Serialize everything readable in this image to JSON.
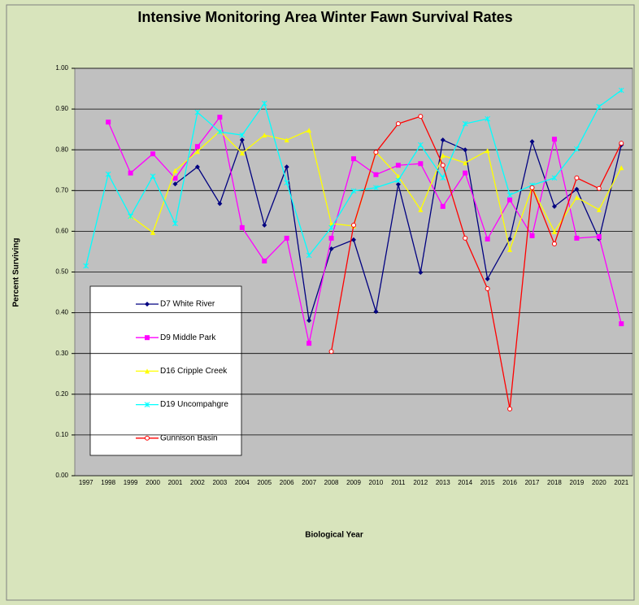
{
  "chart_data": {
    "type": "line",
    "title": "Intensive Monitoring Area Winter Fawn Survival Rates",
    "x_label": "Biological Year",
    "y_label": "Percent Surviving",
    "categories": [
      "1997",
      "1998",
      "1999",
      "2000",
      "2001",
      "2002",
      "2003",
      "2004",
      "2005",
      "2006",
      "2007",
      "2008",
      "2009",
      "2010",
      "2011",
      "2012",
      "2013",
      "2014",
      "2015",
      "2016",
      "2017",
      "2018",
      "2019",
      "2020",
      "2021"
    ],
    "ylim": [
      0,
      1
    ],
    "yticks": [
      {
        "value": 0,
        "label": "0.00"
      },
      {
        "value": 0.1,
        "label": "0.10"
      },
      {
        "value": 0.2,
        "label": "0.20"
      },
      {
        "value": 0.3,
        "label": "0.30"
      },
      {
        "value": 0.4,
        "label": "0.40"
      },
      {
        "value": 0.5,
        "label": "0.50"
      },
      {
        "value": 0.6,
        "label": "0.60"
      },
      {
        "value": 0.7,
        "label": "0.70"
      },
      {
        "value": 0.8,
        "label": "0.80"
      },
      {
        "value": 0.9,
        "label": "0.90"
      },
      {
        "value": 1,
        "label": "1.00"
      }
    ],
    "grid": true,
    "series": [
      {
        "name": "D7 White River",
        "color": "#000080",
        "marker": "diamond",
        "values": [
          null,
          null,
          null,
          null,
          0.716,
          0.758,
          0.668,
          0.824,
          0.615,
          0.758,
          0.381,
          0.557,
          0.579,
          0.403,
          0.715,
          0.499,
          0.824,
          0.8,
          0.483,
          0.581,
          0.82,
          0.661,
          0.703,
          0.581,
          0.812
        ]
      },
      {
        "name": "D9 Middle Park",
        "color": "#ff00ff",
        "marker": "square",
        "values": [
          null,
          0.868,
          0.743,
          0.79,
          0.73,
          0.808,
          0.88,
          0.609,
          0.527,
          0.583,
          0.325,
          0.583,
          0.778,
          0.739,
          0.762,
          0.766,
          0.661,
          0.743,
          0.581,
          0.677,
          0.589,
          0.826,
          0.583,
          0.587,
          0.373
        ]
      },
      {
        "name": "D16 Cripple Creek",
        "color": "#ffff00",
        "marker": "triangle",
        "values": [
          null,
          null,
          0.637,
          0.597,
          0.749,
          0.796,
          0.846,
          0.792,
          0.836,
          0.824,
          0.848,
          0.619,
          0.613,
          0.794,
          0.735,
          0.653,
          0.786,
          0.768,
          0.798,
          0.555,
          0.707,
          0.599,
          0.683,
          0.653,
          0.756
        ]
      },
      {
        "name": "D19 Uncompahgre",
        "color": "#00ffff",
        "marker": "star",
        "values": [
          0.515,
          0.74,
          0.637,
          0.735,
          0.619,
          0.892,
          0.844,
          0.836,
          0.914,
          0.719,
          0.541,
          0.609,
          0.699,
          0.707,
          0.725,
          0.812,
          0.731,
          0.864,
          0.876,
          0.689,
          0.713,
          0.731,
          0.802,
          0.906,
          0.946
        ]
      },
      {
        "name": "Gunnison Basin",
        "color": "#ff0000",
        "marker": "circle",
        "values": [
          null,
          null,
          null,
          null,
          null,
          null,
          null,
          null,
          null,
          null,
          null,
          0.305,
          0.615,
          0.794,
          0.864,
          0.882,
          0.762,
          0.583,
          0.459,
          0.164,
          0.707,
          0.569,
          0.731,
          0.705,
          0.816
        ]
      }
    ]
  }
}
